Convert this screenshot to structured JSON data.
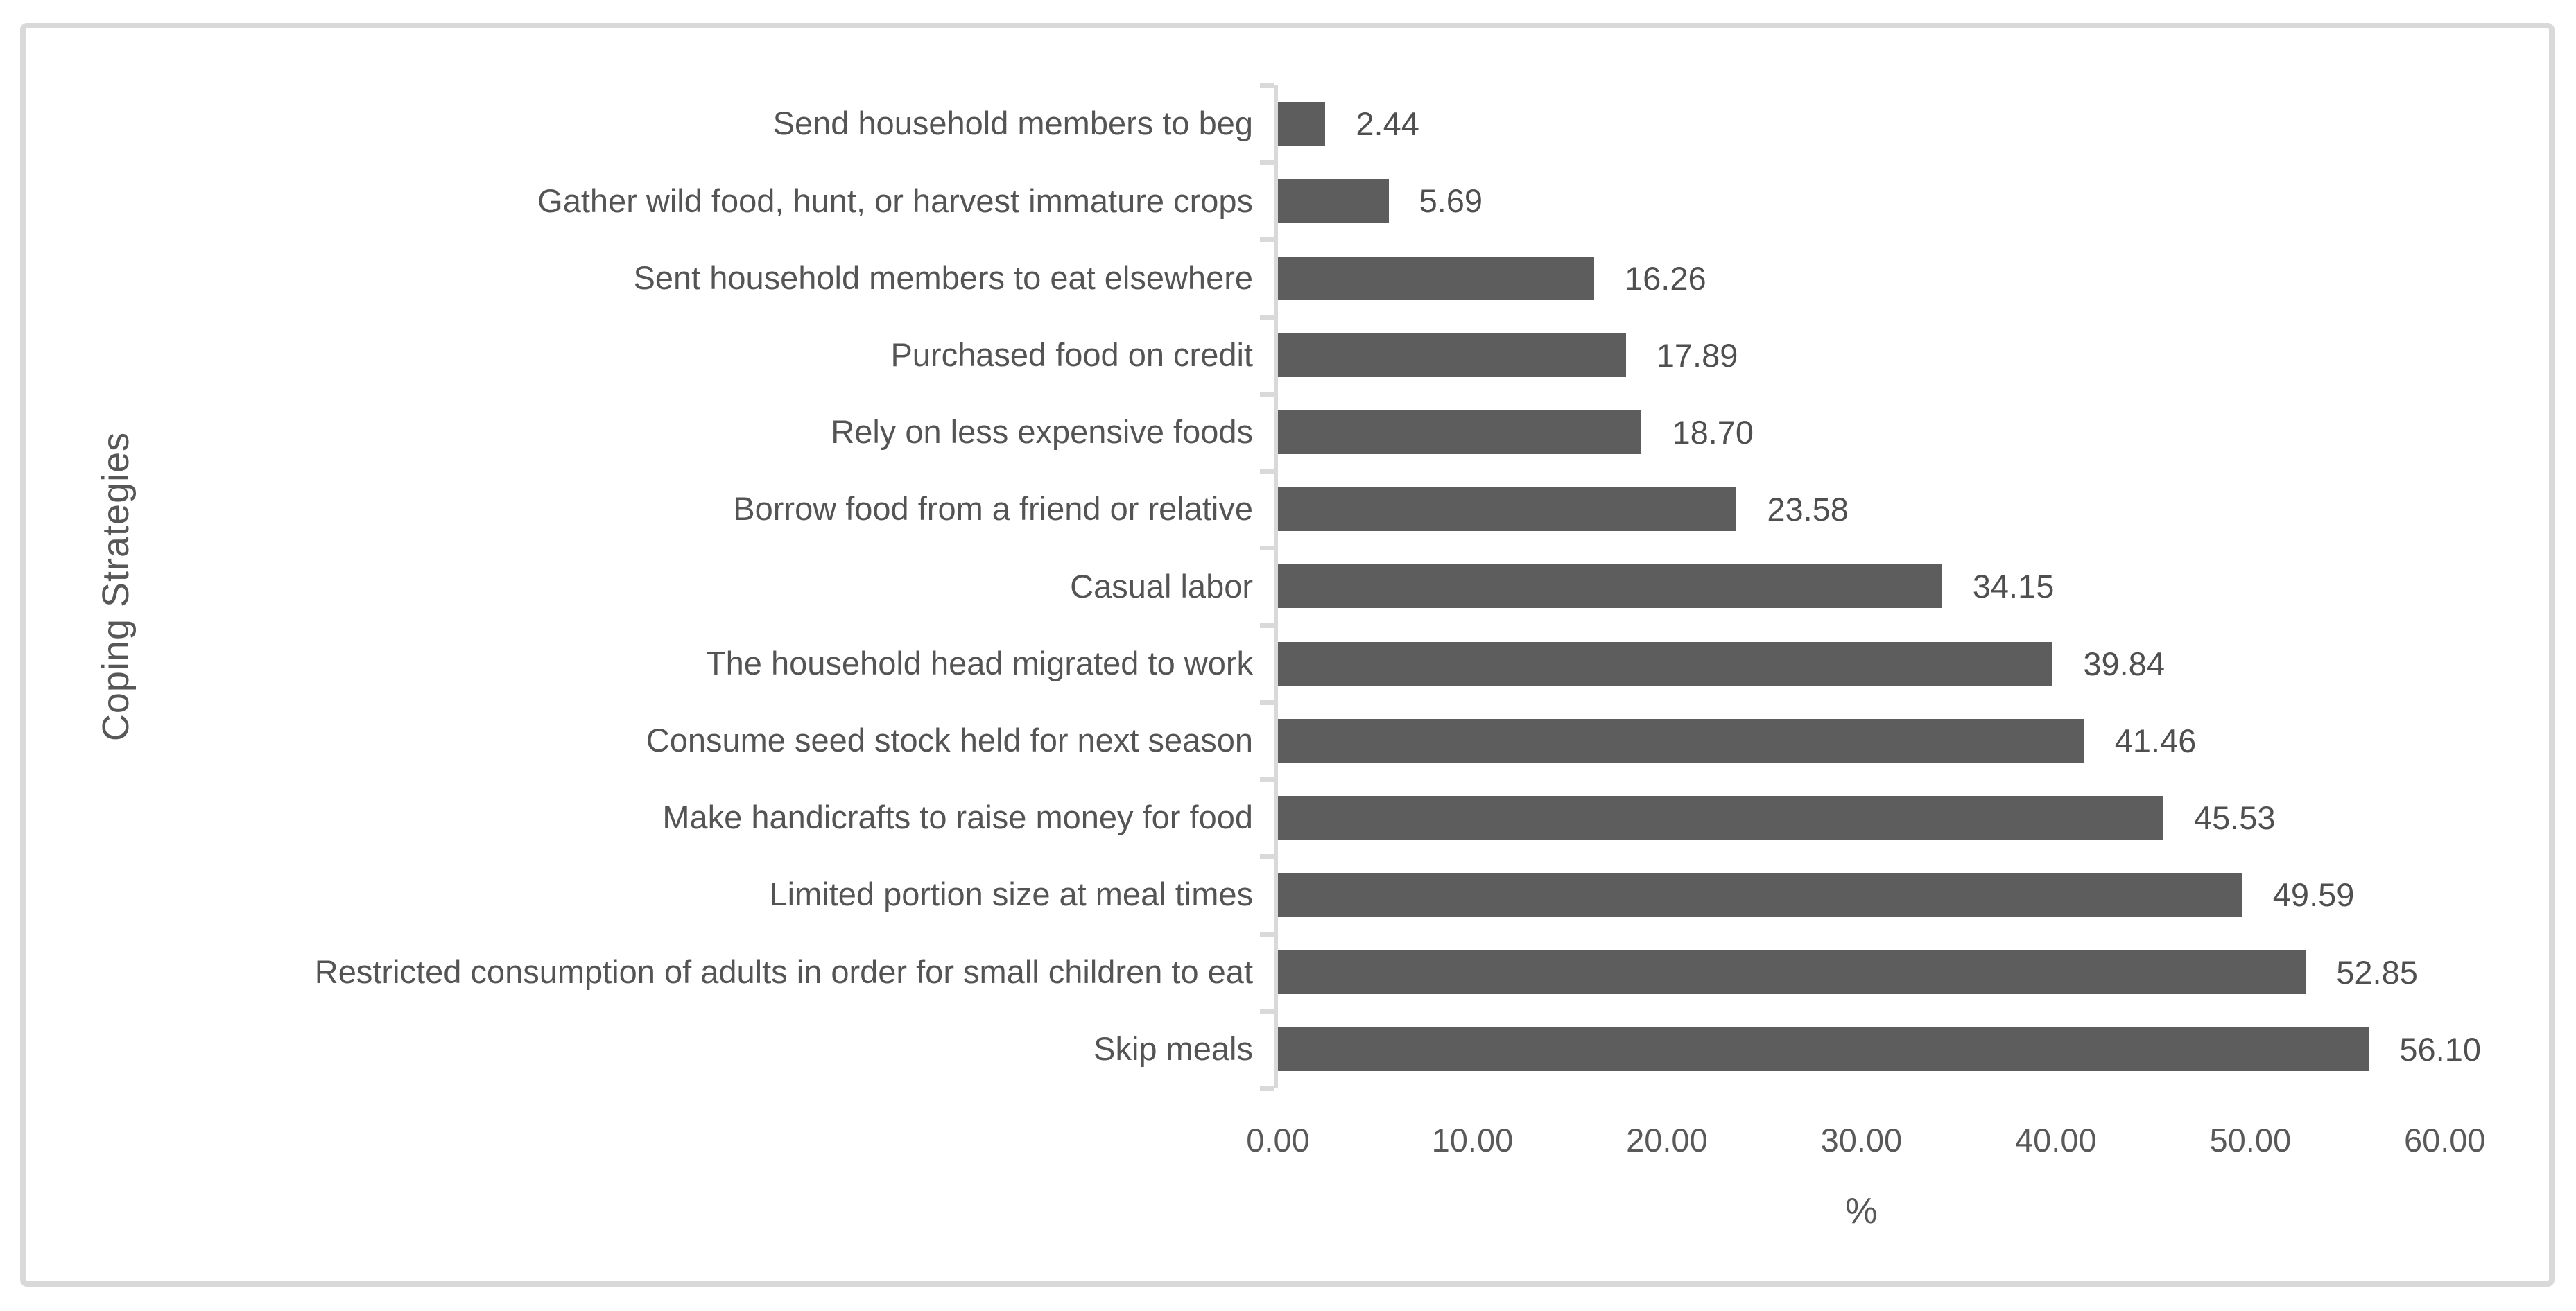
{
  "chart_data": {
    "type": "bar",
    "orientation": "horizontal",
    "title": "",
    "xlabel": "%",
    "ylabel": "Coping Strategies",
    "xlim": [
      0,
      60
    ],
    "grid": false,
    "legend": null,
    "xticks": [
      "0.00",
      "10.00",
      "20.00",
      "30.00",
      "40.00",
      "50.00",
      "60.00"
    ],
    "categories": [
      "Send household members to beg",
      "Gather wild food, hunt, or harvest immature crops",
      "Sent household members to eat elsewhere",
      "Purchased food on credit",
      "Rely on less expensive foods",
      "Borrow food from a friend or relative",
      "Casual labor",
      "The household head migrated to work",
      "Consume seed stock held for next season",
      "Make handicrafts to raise money for food",
      "Limited portion size at meal times",
      "Restricted consumption of adults in order for small children to eat",
      "Skip meals"
    ],
    "values": [
      2.44,
      5.69,
      16.26,
      17.89,
      18.7,
      23.58,
      34.15,
      39.84,
      41.46,
      45.53,
      49.59,
      52.85,
      56.1
    ],
    "value_labels": [
      "2.44",
      "5.69",
      "16.26",
      "17.89",
      "18.70",
      "23.58",
      "34.15",
      "39.84",
      "41.46",
      "45.53",
      "49.59",
      "52.85",
      "56.10"
    ],
    "colors": {
      "bar": "#5d5d5d",
      "axis": "#d9d9d9",
      "text": "#545454",
      "frame_border": "#d9d9d9",
      "background": "#ffffff"
    }
  }
}
